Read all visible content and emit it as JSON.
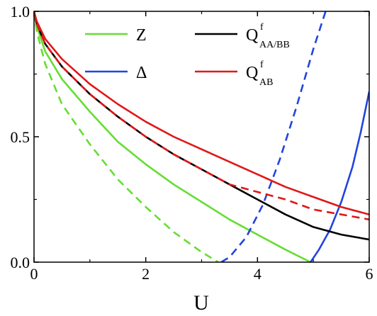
{
  "chart_data": {
    "type": "line",
    "xlabel": "U",
    "ylabel": "",
    "xlim": [
      0,
      6
    ],
    "ylim": [
      0,
      1.0
    ],
    "x_ticks": [
      "0",
      "2",
      "4",
      "6"
    ],
    "y_ticks": [
      "0.0",
      "0.5",
      "1.0"
    ],
    "legend": [
      {
        "label": "Z",
        "sup": "",
        "sub": "",
        "color": "#66dd33"
      },
      {
        "label": "Δ",
        "sup": "",
        "sub": "",
        "color": "#2244dd"
      },
      {
        "label": "Q",
        "sup": "f",
        "sub": "AA/BB",
        "color": "#000000"
      },
      {
        "label": "Q",
        "sup": "f",
        "sub": "AB",
        "color": "#e01818"
      }
    ],
    "series": [
      {
        "name": "Z",
        "color": "#66dd33",
        "dash": false,
        "x": [
          0,
          0.05,
          0.2,
          0.5,
          1,
          1.5,
          2,
          2.5,
          3,
          3.5,
          4,
          4.5,
          4.95
        ],
        "y": [
          1.0,
          0.94,
          0.84,
          0.73,
          0.6,
          0.48,
          0.39,
          0.31,
          0.24,
          0.17,
          0.11,
          0.05,
          0.0
        ]
      },
      {
        "name": "Z",
        "color": "#66dd33",
        "dash": true,
        "x": [
          0,
          0.05,
          0.2,
          0.5,
          1,
          1.5,
          2,
          2.5,
          3,
          3.3
        ],
        "y": [
          1.0,
          0.92,
          0.79,
          0.63,
          0.47,
          0.33,
          0.22,
          0.12,
          0.04,
          0.0
        ]
      },
      {
        "name": "Δ",
        "color": "#2244dd",
        "dash": false,
        "x": [
          4.95,
          5.1,
          5.3,
          5.5,
          5.7,
          5.85,
          6.0
        ],
        "y": [
          0.0,
          0.05,
          0.13,
          0.24,
          0.38,
          0.52,
          0.68
        ]
      },
      {
        "name": "Δ",
        "color": "#2244dd",
        "dash": true,
        "x": [
          3.35,
          3.5,
          3.8,
          4.1,
          4.4,
          4.7,
          5.0,
          5.22
        ],
        "y": [
          0.0,
          0.02,
          0.1,
          0.23,
          0.41,
          0.62,
          0.85,
          1.0
        ]
      },
      {
        "name": "Q^f_AA/BB",
        "color": "#000000",
        "dash": false,
        "x": [
          0,
          0.05,
          0.2,
          0.5,
          1,
          1.5,
          2,
          2.5,
          3,
          3.5,
          4,
          4.5,
          5,
          5.5,
          6
        ],
        "y": [
          1.0,
          0.95,
          0.87,
          0.78,
          0.67,
          0.58,
          0.5,
          0.43,
          0.37,
          0.31,
          0.25,
          0.19,
          0.14,
          0.11,
          0.09
        ]
      },
      {
        "name": "Q^f_AB",
        "color": "#e01818",
        "dash": false,
        "x": [
          0,
          0.05,
          0.2,
          0.5,
          1,
          1.5,
          2,
          2.5,
          3,
          3.5,
          4,
          4.5,
          5,
          5.5,
          6
        ],
        "y": [
          1.0,
          0.96,
          0.89,
          0.81,
          0.71,
          0.63,
          0.56,
          0.5,
          0.45,
          0.4,
          0.35,
          0.3,
          0.26,
          0.22,
          0.19
        ]
      },
      {
        "name": "Q^f_AB",
        "color": "#e01818",
        "dash": true,
        "x": [
          0,
          0.05,
          0.2,
          0.5,
          1,
          1.5,
          2,
          2.5,
          3,
          3.5,
          4,
          4.5,
          5,
          5.5,
          6
        ],
        "y": [
          1.0,
          0.95,
          0.87,
          0.78,
          0.67,
          0.58,
          0.5,
          0.43,
          0.37,
          0.31,
          0.28,
          0.25,
          0.21,
          0.19,
          0.17
        ]
      }
    ]
  }
}
